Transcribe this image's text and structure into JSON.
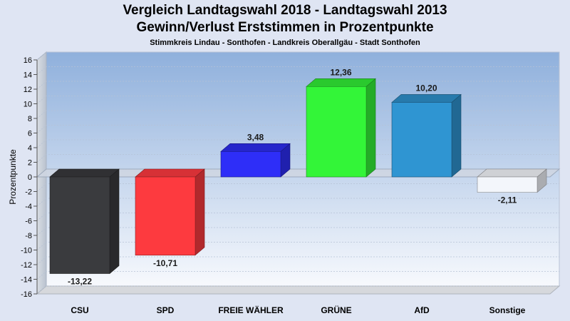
{
  "chart_data": {
    "type": "bar",
    "title": "Vergleich Landtagswahl 2018 - Landtagswahl 2013",
    "subtitle_line": "Gewinn/Verlust Erststimmen in Prozentpunkte",
    "subtitle": "Stimmkreis Lindau - Sonthofen - Landkreis Oberallgäu - Stadt Sonthofen",
    "ylabel": "Prozentpunkte",
    "xlabel": "",
    "ylim": [
      -16,
      16
    ],
    "yticks": [
      16,
      14,
      12,
      10,
      8,
      6,
      4,
      2,
      0,
      -2,
      -4,
      -6,
      -8,
      -10,
      -12,
      -14,
      -16
    ],
    "grid": true,
    "categories": [
      "CSU",
      "SPD",
      "FREIE WÄHLER",
      "GRÜNE",
      "AfD",
      "Sonstige"
    ],
    "values": [
      -13.22,
      -10.71,
      3.48,
      12.36,
      10.2,
      -2.11
    ],
    "value_labels": [
      "-13,22",
      "-10,71",
      "3,48",
      "12,36",
      "10,20",
      "-2,11"
    ],
    "colors": [
      "#3a3b3e",
      "#fd3a3f",
      "#2e2ef8",
      "#33f538",
      "#2f95d2",
      "#f3f6fb"
    ]
  }
}
